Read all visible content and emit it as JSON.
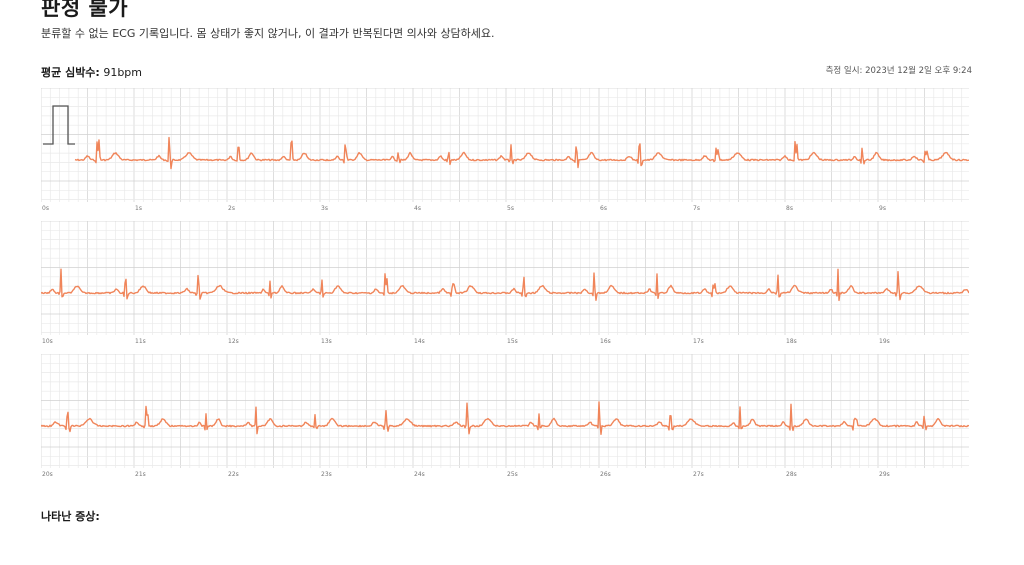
{
  "report": {
    "title": "판정 불가",
    "subtitle": "분류할 수 없는 ECG 기록입니다. 몸 상태가 좋지 않거나, 이 결과가 반복된다면 의사와 상담하세요.",
    "avg_hr_label": "평균 심박수:",
    "avg_hr_value": "91bpm",
    "measured_label": "측정 일시:",
    "measured_value": "2023년 12월 2일 오후 9:24",
    "symptoms_label": "나타난 증상:"
  },
  "ecg": {
    "trace_color": "#f0855a",
    "grid_major_color": "#d0d0d0",
    "grid_minor_color": "#e9e9e9",
    "strips": [
      {
        "ticks": [
          "0s",
          "1s",
          "2s",
          "3s",
          "4s",
          "5s",
          "6s",
          "7s",
          "8s",
          "9s"
        ]
      },
      {
        "ticks": [
          "10s",
          "11s",
          "12s",
          "13s",
          "14s",
          "15s",
          "16s",
          "17s",
          "18s",
          "19s"
        ]
      },
      {
        "ticks": [
          "20s",
          "21s",
          "22s",
          "23s",
          "24s",
          "25s",
          "26s",
          "27s",
          "28s",
          "29s"
        ]
      }
    ]
  }
}
